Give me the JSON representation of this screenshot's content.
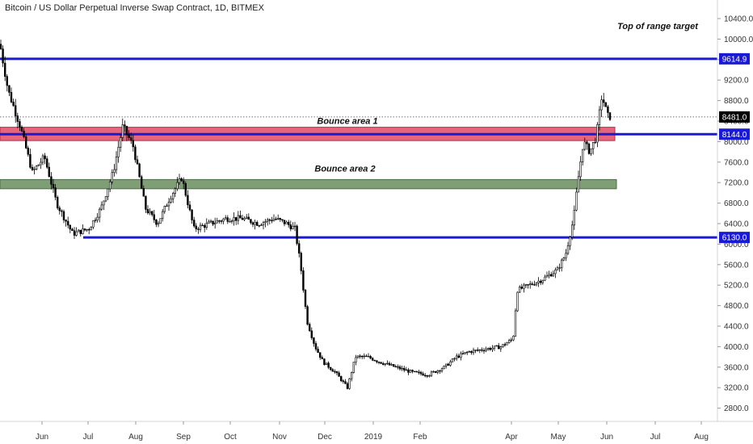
{
  "chart_data": {
    "type": "candlestick",
    "title": "Bitcoin / US Dollar Perpetual Inverse Swap Contract, 1D, BITMEX",
    "xlabel": "",
    "ylabel": "",
    "ylim": [
      2500,
      10700
    ],
    "y_ticks": [
      "10400.0",
      "10000.0",
      "9600.0",
      "9200.0",
      "8800.0",
      "8400.0",
      "8000.0",
      "7600.0",
      "7200.0",
      "6800.0",
      "6400.0",
      "6000.0",
      "5600.0",
      "5200.0",
      "4800.0",
      "4400.0",
      "4000.0",
      "3600.0",
      "3200.0",
      "2800.0"
    ],
    "x_ticks": [
      "Jun",
      "Jul",
      "Aug",
      "Sep",
      "Oct",
      "Nov",
      "Dec",
      "2019",
      "Feb",
      "Apr",
      "May",
      "Jun",
      "Jul",
      "Aug"
    ],
    "last_price": "8481.0",
    "price_path": [
      [
        0,
        9900
      ],
      [
        10,
        9000
      ],
      [
        25,
        8300
      ],
      [
        40,
        7400
      ],
      [
        55,
        7700
      ],
      [
        70,
        6800
      ],
      [
        90,
        6200
      ],
      [
        110,
        6300
      ],
      [
        125,
        6700
      ],
      [
        140,
        7400
      ],
      [
        152,
        8300
      ],
      [
        165,
        7900
      ],
      [
        180,
        6700
      ],
      [
        195,
        6400
      ],
      [
        210,
        6900
      ],
      [
        225,
        7300
      ],
      [
        240,
        6300
      ],
      [
        260,
        6400
      ],
      [
        280,
        6500
      ],
      [
        300,
        6500
      ],
      [
        320,
        6400
      ],
      [
        340,
        6500
      ],
      [
        355,
        6400
      ],
      [
        365,
        6300
      ],
      [
        372,
        5600
      ],
      [
        380,
        4500
      ],
      [
        390,
        4000
      ],
      [
        400,
        3700
      ],
      [
        415,
        3500
      ],
      [
        430,
        3200
      ],
      [
        440,
        3800
      ],
      [
        455,
        3800
      ],
      [
        470,
        3700
      ],
      [
        490,
        3600
      ],
      [
        510,
        3500
      ],
      [
        530,
        3450
      ],
      [
        550,
        3600
      ],
      [
        565,
        3800
      ],
      [
        580,
        3900
      ],
      [
        600,
        3950
      ],
      [
        620,
        4000
      ],
      [
        635,
        4150
      ],
      [
        640,
        5100
      ],
      [
        655,
        5200
      ],
      [
        670,
        5300
      ],
      [
        690,
        5500
      ],
      [
        700,
        5800
      ],
      [
        710,
        6500
      ],
      [
        715,
        7200
      ],
      [
        722,
        8000
      ],
      [
        730,
        7800
      ],
      [
        738,
        8100
      ],
      [
        745,
        8900
      ],
      [
        752,
        8500
      ],
      [
        757,
        8481
      ]
    ],
    "levels": [
      {
        "name": "resistance",
        "value": 9614.9,
        "label": "9614.9",
        "color": "#1a1ad6"
      },
      {
        "name": "support-high",
        "value": 8144.0,
        "label": "8144.0",
        "color": "#1a1ad6"
      },
      {
        "name": "support-low",
        "value": 6130.0,
        "label": "6130.0",
        "color": "#1a1ad6"
      }
    ],
    "zones": [
      {
        "name": "bounce-area-1",
        "label": "Bounce area 1",
        "y_high": 8280,
        "y_low": 8020,
        "color": "#e8667c"
      },
      {
        "name": "bounce-area-2",
        "label": "Bounce area 2",
        "y_high": 7260,
        "y_low": 7080,
        "color": "#7f9e76"
      }
    ],
    "annotations": [
      {
        "text": "Top of range target"
      }
    ],
    "grid": false,
    "legend": "none"
  }
}
